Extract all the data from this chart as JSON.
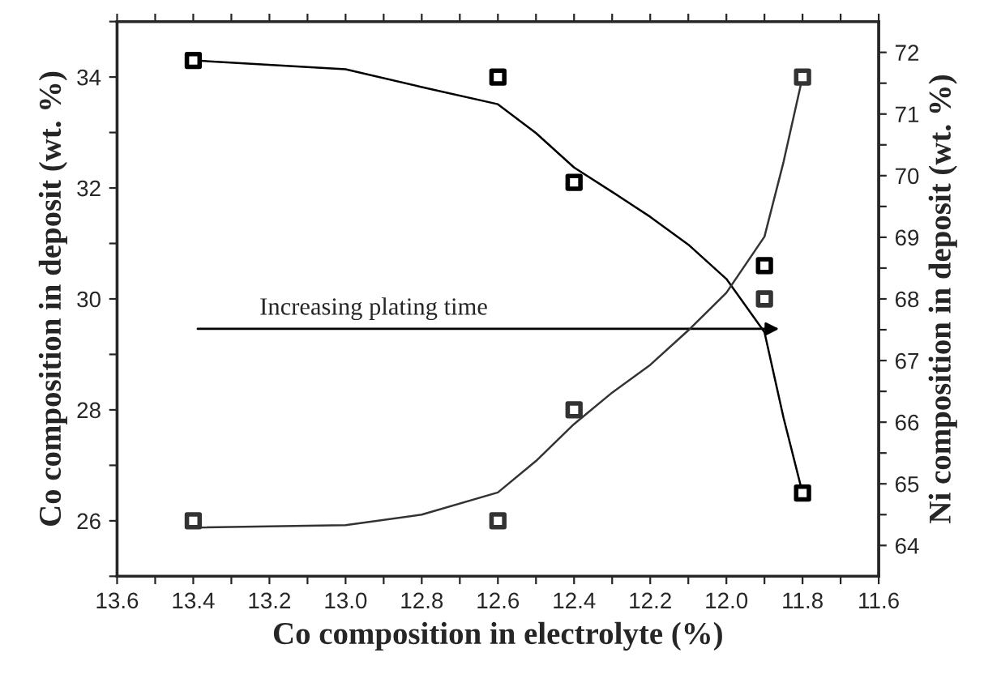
{
  "chart_data": {
    "type": "scatter",
    "xlabel": "Co composition in electrolyte (%)",
    "ylabel": "Co composition in deposit (wt. %)",
    "y2label": "Ni composition in deposit (wt. %)",
    "xlim": [
      13.6,
      11.6
    ],
    "xticks": [
      13.6,
      {
        "value": 13.5,
        "label": null
      },
      13.4,
      {
        "value": 13.3,
        "label": null
      },
      13.2,
      {
        "value": 13.1,
        "label": null
      },
      {
        "value": 13.0,
        "label": "13.0"
      },
      {
        "value": 12.9,
        "label": null
      },
      12.8,
      {
        "value": 12.7,
        "label": null
      },
      12.6,
      {
        "value": 12.5,
        "label": null
      },
      12.4,
      {
        "value": 12.3,
        "label": null
      },
      12.2,
      {
        "value": 12.1,
        "label": null
      },
      {
        "value": 12.0,
        "label": "12.0"
      },
      {
        "value": 11.9,
        "label": null
      },
      11.8,
      {
        "value": 11.7,
        "label": null
      },
      11.6
    ],
    "ylim": [
      25,
      35
    ],
    "yticks": [
      {
        "value": 25,
        "label": null
      },
      26,
      {
        "value": 27,
        "label": null
      },
      28,
      {
        "value": 29,
        "label": null
      },
      30,
      {
        "value": 31,
        "label": null
      },
      32,
      {
        "value": 33,
        "label": null
      },
      34,
      {
        "value": 35,
        "label": null
      }
    ],
    "y2lim": [
      63.5,
      72.5
    ],
    "y2ticks": [
      64,
      {
        "value": 64.5,
        "label": null
      },
      65,
      {
        "value": 65.5,
        "label": null
      },
      66,
      {
        "value": 66.5,
        "label": null
      },
      67,
      {
        "value": 67.5,
        "label": null
      },
      68,
      {
        "value": 68.5,
        "label": null
      },
      69,
      {
        "value": 69.5,
        "label": null
      },
      70,
      {
        "value": 70.5,
        "label": null
      },
      71,
      {
        "value": 71.5,
        "label": null
      },
      72
    ],
    "marker": "square",
    "grid": false,
    "legend": false,
    "series": [
      {
        "color": "#000000",
        "x": [
          13.4,
          12.6,
          12.4,
          11.9,
          11.8
        ],
        "values": [
          34.3,
          34.0,
          32.1,
          30.6,
          26.5
        ]
      },
      {
        "axis": "y2",
        "color": "#333333",
        "x": [
          13.4,
          12.6,
          12.4,
          11.9,
          11.8
        ],
        "values": [
          64.4,
          64.4,
          66.2,
          68.0,
          71.6
        ]
      },
      {
        "type": "line",
        "marker": "none",
        "color": "#000000",
        "x": [
          13.4,
          13.0,
          12.8,
          12.6,
          12.5,
          12.4,
          12.3,
          12.2,
          12.1,
          12.0,
          11.9,
          11.85,
          11.8
        ],
        "values": [
          34.3,
          34.14,
          33.82,
          33.51,
          32.99,
          32.37,
          31.93,
          31.48,
          30.98,
          30.36,
          29.4,
          27.86,
          26.5
        ]
      },
      {
        "type": "line",
        "marker": "none",
        "axis": "y2",
        "color": "#333333",
        "x": [
          13.4,
          13.0,
          12.8,
          12.6,
          12.5,
          12.4,
          12.3,
          12.2,
          12.1,
          12.0,
          11.9,
          11.85,
          11.8
        ],
        "values": [
          64.29,
          64.33,
          64.5,
          64.86,
          65.37,
          65.97,
          66.48,
          66.93,
          67.49,
          68.1,
          69.01,
          70.22,
          71.6
        ]
      }
    ],
    "annotations": [
      "Increasing plating time"
    ]
  }
}
